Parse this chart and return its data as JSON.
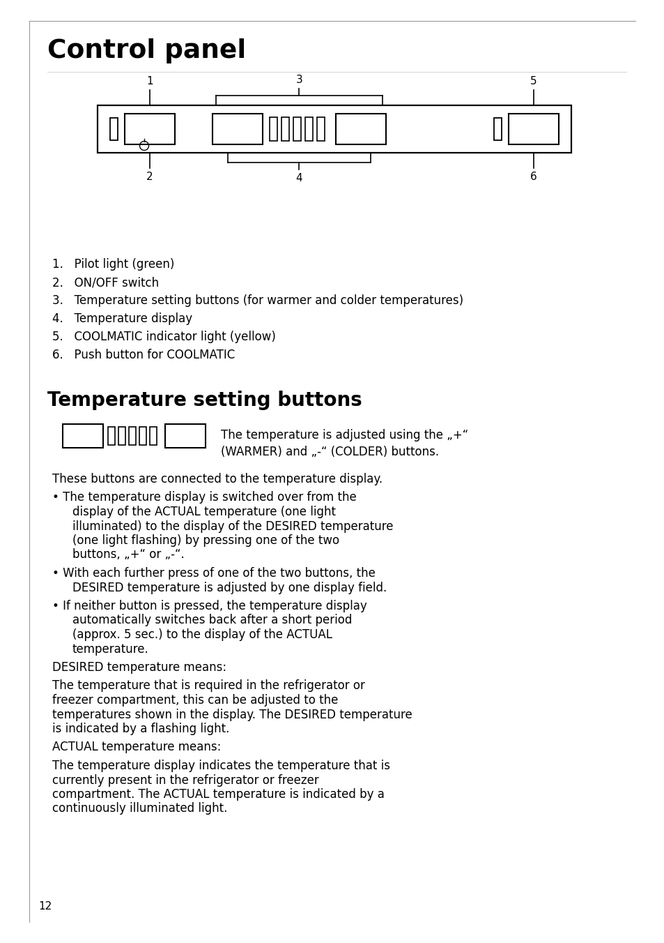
{
  "title": "Control panel",
  "section2_title": "Temperature setting buttons",
  "page_number": "12",
  "background_color": "#ffffff",
  "text_color": "#000000",
  "list_items": [
    "1.   Pilot light (green)",
    "2.   ON/OFF switch",
    "3.   Temperature setting buttons (for warmer and colder temperatures)",
    "4.   Temperature display",
    "5.   COOLMATIC indicator light (yellow)",
    "6.   Push button for COOLMATIC"
  ],
  "panel_text_line1": "The temperature is adjusted using the „+“",
  "panel_text_line2": "(WARMER) and „-“ (COLDER) buttons.",
  "body_text": [
    {
      "text": "These buttons are connected to the temperature display.",
      "bold": false,
      "indent": false,
      "bullet": false
    },
    {
      "text": "The temperature display is switched over from the display of the ACTUAL temperature (one light illuminated) to the display of the DESIRED temperature (one light flashing) by pressing one of the two buttons, „+“ or „-“.",
      "bold": false,
      "indent": true,
      "bullet": true
    },
    {
      "text": "With each further press of one of the two buttons, the DESIRED temperature is adjusted by one display field.",
      "bold": false,
      "indent": true,
      "bullet": true
    },
    {
      "text": "If neither button is pressed, the temperature display automatically switches back after a short period (approx. 5 sec.) to the display of the ACTUAL temperature.",
      "bold": false,
      "indent": true,
      "bullet": true
    },
    {
      "text": "DESIRED temperature means:",
      "bold": false,
      "indent": false,
      "bullet": false
    },
    {
      "text": "The temperature that is required in the refrigerator or freezer compartment, this can be adjusted to the temperatures shown in the display. The DESIRED temperature is indicated by a flashing light.",
      "bold": false,
      "indent": false,
      "bullet": false
    },
    {
      "text": "ACTUAL temperature means:",
      "bold": false,
      "indent": false,
      "bullet": false
    },
    {
      "text": "The temperature display indicates the temperature that is currently present in the refrigerator or freezer compartment. The ACTUAL temperature is indicated by a continuously illuminated light.",
      "bold": false,
      "indent": false,
      "bullet": false
    }
  ]
}
